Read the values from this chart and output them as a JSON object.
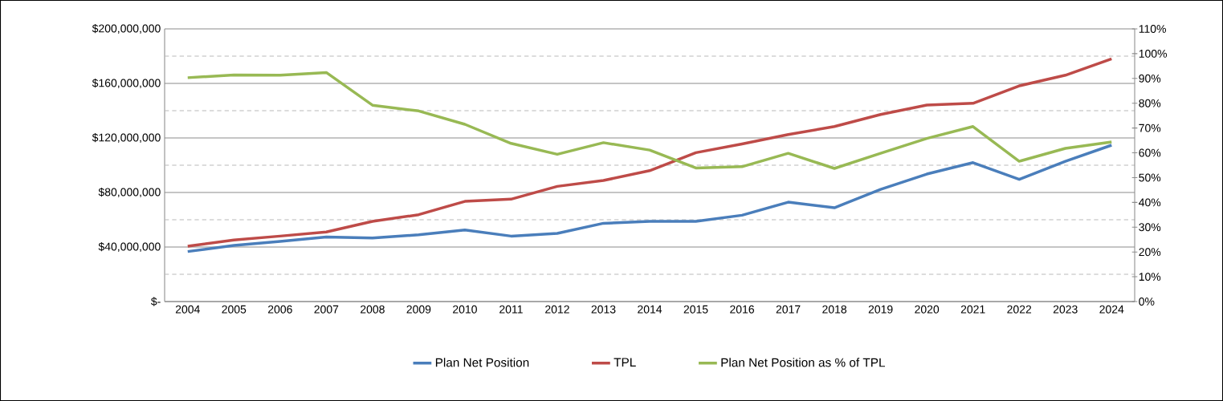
{
  "chart_data": {
    "type": "line",
    "categories": [
      "2004",
      "2005",
      "2006",
      "2007",
      "2008",
      "2009",
      "2010",
      "2011",
      "2012",
      "2013",
      "2014",
      "2015",
      "2016",
      "2017",
      "2018",
      "2019",
      "2020",
      "2021",
      "2022",
      "2023",
      "2024"
    ],
    "series": [
      {
        "name": "Plan Net Position",
        "color": "#4a7ebb",
        "values": [
          36700000,
          41200000,
          44100000,
          47400000,
          46600000,
          49000000,
          52500000,
          48000000,
          50000000,
          57400000,
          58800000,
          58800000,
          63300000,
          72900000,
          68800000,
          82300000,
          93500000,
          101900000,
          89600000,
          102900000,
          114700000
        ]
      },
      {
        "name": "TPL",
        "color": "#be4b48",
        "values": [
          40600000,
          45100000,
          48000000,
          51000000,
          58800000,
          63700000,
          73500000,
          75100000,
          84500000,
          88800000,
          96000000,
          109200000,
          115600000,
          122500000,
          128400000,
          137200000,
          144100000,
          145400000,
          158200000,
          166000000,
          178000000
        ]
      },
      {
        "name": "Plan Net Position as % of TPL",
        "color": "#98b954",
        "axis": "y2",
        "values": [
          90.3,
          91.4,
          91.3,
          92.4,
          79.2,
          76.9,
          71.5,
          63.8,
          59.4,
          64.1,
          61.1,
          53.9,
          54.4,
          59.8,
          53.7,
          59.8,
          65.8,
          70.6,
          56.6,
          61.8,
          64.4
        ]
      }
    ],
    "ylim": [
      0,
      200000000
    ],
    "yticks": [
      {
        "value": 0,
        "label": "$-"
      },
      {
        "value": 20000000,
        "label": null
      },
      {
        "value": 40000000,
        "label": "$40,000,000"
      },
      {
        "value": 60000000,
        "label": null
      },
      {
        "value": 80000000,
        "label": "$80,000,000"
      },
      {
        "value": 100000000,
        "label": null
      },
      {
        "value": 120000000,
        "label": "$120,000,000"
      },
      {
        "value": 140000000,
        "label": null
      },
      {
        "value": 160000000,
        "label": "$160,000,000"
      },
      {
        "value": 180000000,
        "label": null
      },
      {
        "value": 200000000,
        "label": "$200,000,000"
      }
    ],
    "y2lim": [
      0,
      110
    ],
    "y2ticks": [
      {
        "value": 0,
        "label": "0%"
      },
      {
        "value": 10,
        "label": "10%"
      },
      {
        "value": 20,
        "label": "20%"
      },
      {
        "value": 30,
        "label": "30%"
      },
      {
        "value": 40,
        "label": "40%"
      },
      {
        "value": 50,
        "label": "50%"
      },
      {
        "value": 60,
        "label": "60%"
      },
      {
        "value": 70,
        "label": "70%"
      },
      {
        "value": 80,
        "label": "80%"
      },
      {
        "value": 90,
        "label": "90%"
      },
      {
        "value": 100,
        "label": "100%"
      },
      {
        "value": 110,
        "label": "110%"
      }
    ],
    "grid": "y",
    "legend": "bottom"
  }
}
